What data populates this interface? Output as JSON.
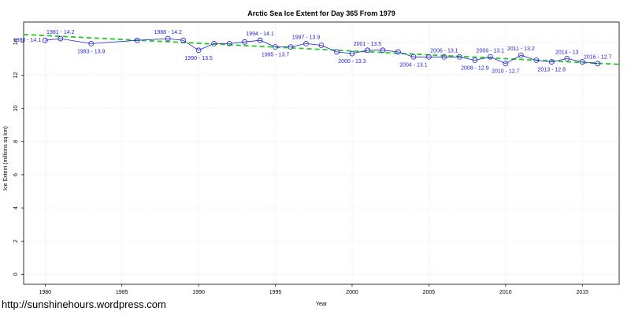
{
  "chart_data": {
    "type": "line",
    "title": "Arctic Sea Ice Extent for Day 365 From 1979",
    "xlabel": "Year",
    "ylabel": "Ice Extent (millions sq km)",
    "xlim": [
      1978.6,
      2017.4
    ],
    "ylim": [
      -0.6,
      15.2
    ],
    "xticks": [
      1980,
      1985,
      1990,
      1995,
      2000,
      2005,
      2010,
      2015
    ],
    "yticks": [
      0,
      2,
      4,
      6,
      8,
      10,
      12,
      14
    ],
    "grid": true,
    "series": [
      {
        "type": "line",
        "color": "#1f1fd6",
        "marker": "circle",
        "x": [
          1980,
          1981,
          1983,
          1986,
          1988,
          1989,
          1990,
          1991,
          1992,
          1993,
          1994,
          1995,
          1996,
          1997,
          1998,
          1999,
          2000,
          2001,
          2002,
          2003,
          2004,
          2005,
          2006,
          2007,
          2008,
          2009,
          2010,
          2011,
          2012,
          2013,
          2014,
          2015,
          2016
        ],
        "y": [
          14.1,
          14.2,
          13.9,
          14.1,
          14.2,
          14.1,
          13.5,
          13.9,
          13.9,
          14.0,
          14.1,
          13.7,
          13.7,
          13.9,
          13.8,
          13.4,
          13.3,
          13.5,
          13.5,
          13.4,
          13.1,
          13.1,
          13.1,
          13.1,
          12.9,
          13.1,
          12.7,
          13.2,
          12.9,
          12.8,
          13.0,
          12.8,
          12.7
        ]
      },
      {
        "type": "trend",
        "color": "#22cc22",
        "dashed": true,
        "x": [
          1978.6,
          2017.4
        ],
        "y": [
          14.45,
          12.65
        ]
      }
    ],
    "annotations": [
      {
        "x": 1980,
        "y": 14.1,
        "text": "1980 - 14.1",
        "pos": "left"
      },
      {
        "x": 1981,
        "y": 14.2,
        "text": "1981 - 14.2",
        "pos": "above"
      },
      {
        "x": 1983,
        "y": 13.9,
        "text": "1983 - 13.9",
        "pos": "below"
      },
      {
        "x": 1988,
        "y": 14.2,
        "text": "1988 - 14.2",
        "pos": "above"
      },
      {
        "x": 1990,
        "y": 13.5,
        "text": "1990 - 13.5",
        "pos": "below"
      },
      {
        "x": 1994,
        "y": 14.1,
        "text": "1994 - 14.1",
        "pos": "above"
      },
      {
        "x": 1995,
        "y": 13.7,
        "text": "1995 - 13.7",
        "pos": "below"
      },
      {
        "x": 1997,
        "y": 13.9,
        "text": "1997 - 13.9",
        "pos": "above"
      },
      {
        "x": 2000,
        "y": 13.3,
        "text": "2000 - 13.3",
        "pos": "below"
      },
      {
        "x": 2001,
        "y": 13.5,
        "text": "2001 - 13.5",
        "pos": "above"
      },
      {
        "x": 2004,
        "y": 13.1,
        "text": "2004 - 13.1",
        "pos": "below"
      },
      {
        "x": 2006,
        "y": 13.1,
        "text": "2006 - 13.1",
        "pos": "above"
      },
      {
        "x": 2008,
        "y": 12.9,
        "text": "2008 - 12.9",
        "pos": "below"
      },
      {
        "x": 2009,
        "y": 13.1,
        "text": "2009 - 13.1",
        "pos": "above"
      },
      {
        "x": 2010,
        "y": 12.7,
        "text": "2010 - 12.7",
        "pos": "below"
      },
      {
        "x": 2011,
        "y": 13.2,
        "text": "2011 - 13.2",
        "pos": "above"
      },
      {
        "x": 2013,
        "y": 12.8,
        "text": "2013 - 12.8",
        "pos": "below"
      },
      {
        "x": 2014,
        "y": 13.0,
        "text": "2014 - 13",
        "pos": "above"
      },
      {
        "x": 2016,
        "y": 12.7,
        "text": "2016 - 12.7",
        "pos": "above"
      }
    ]
  },
  "watermark": "http://sunshinehours.wordpress.com"
}
